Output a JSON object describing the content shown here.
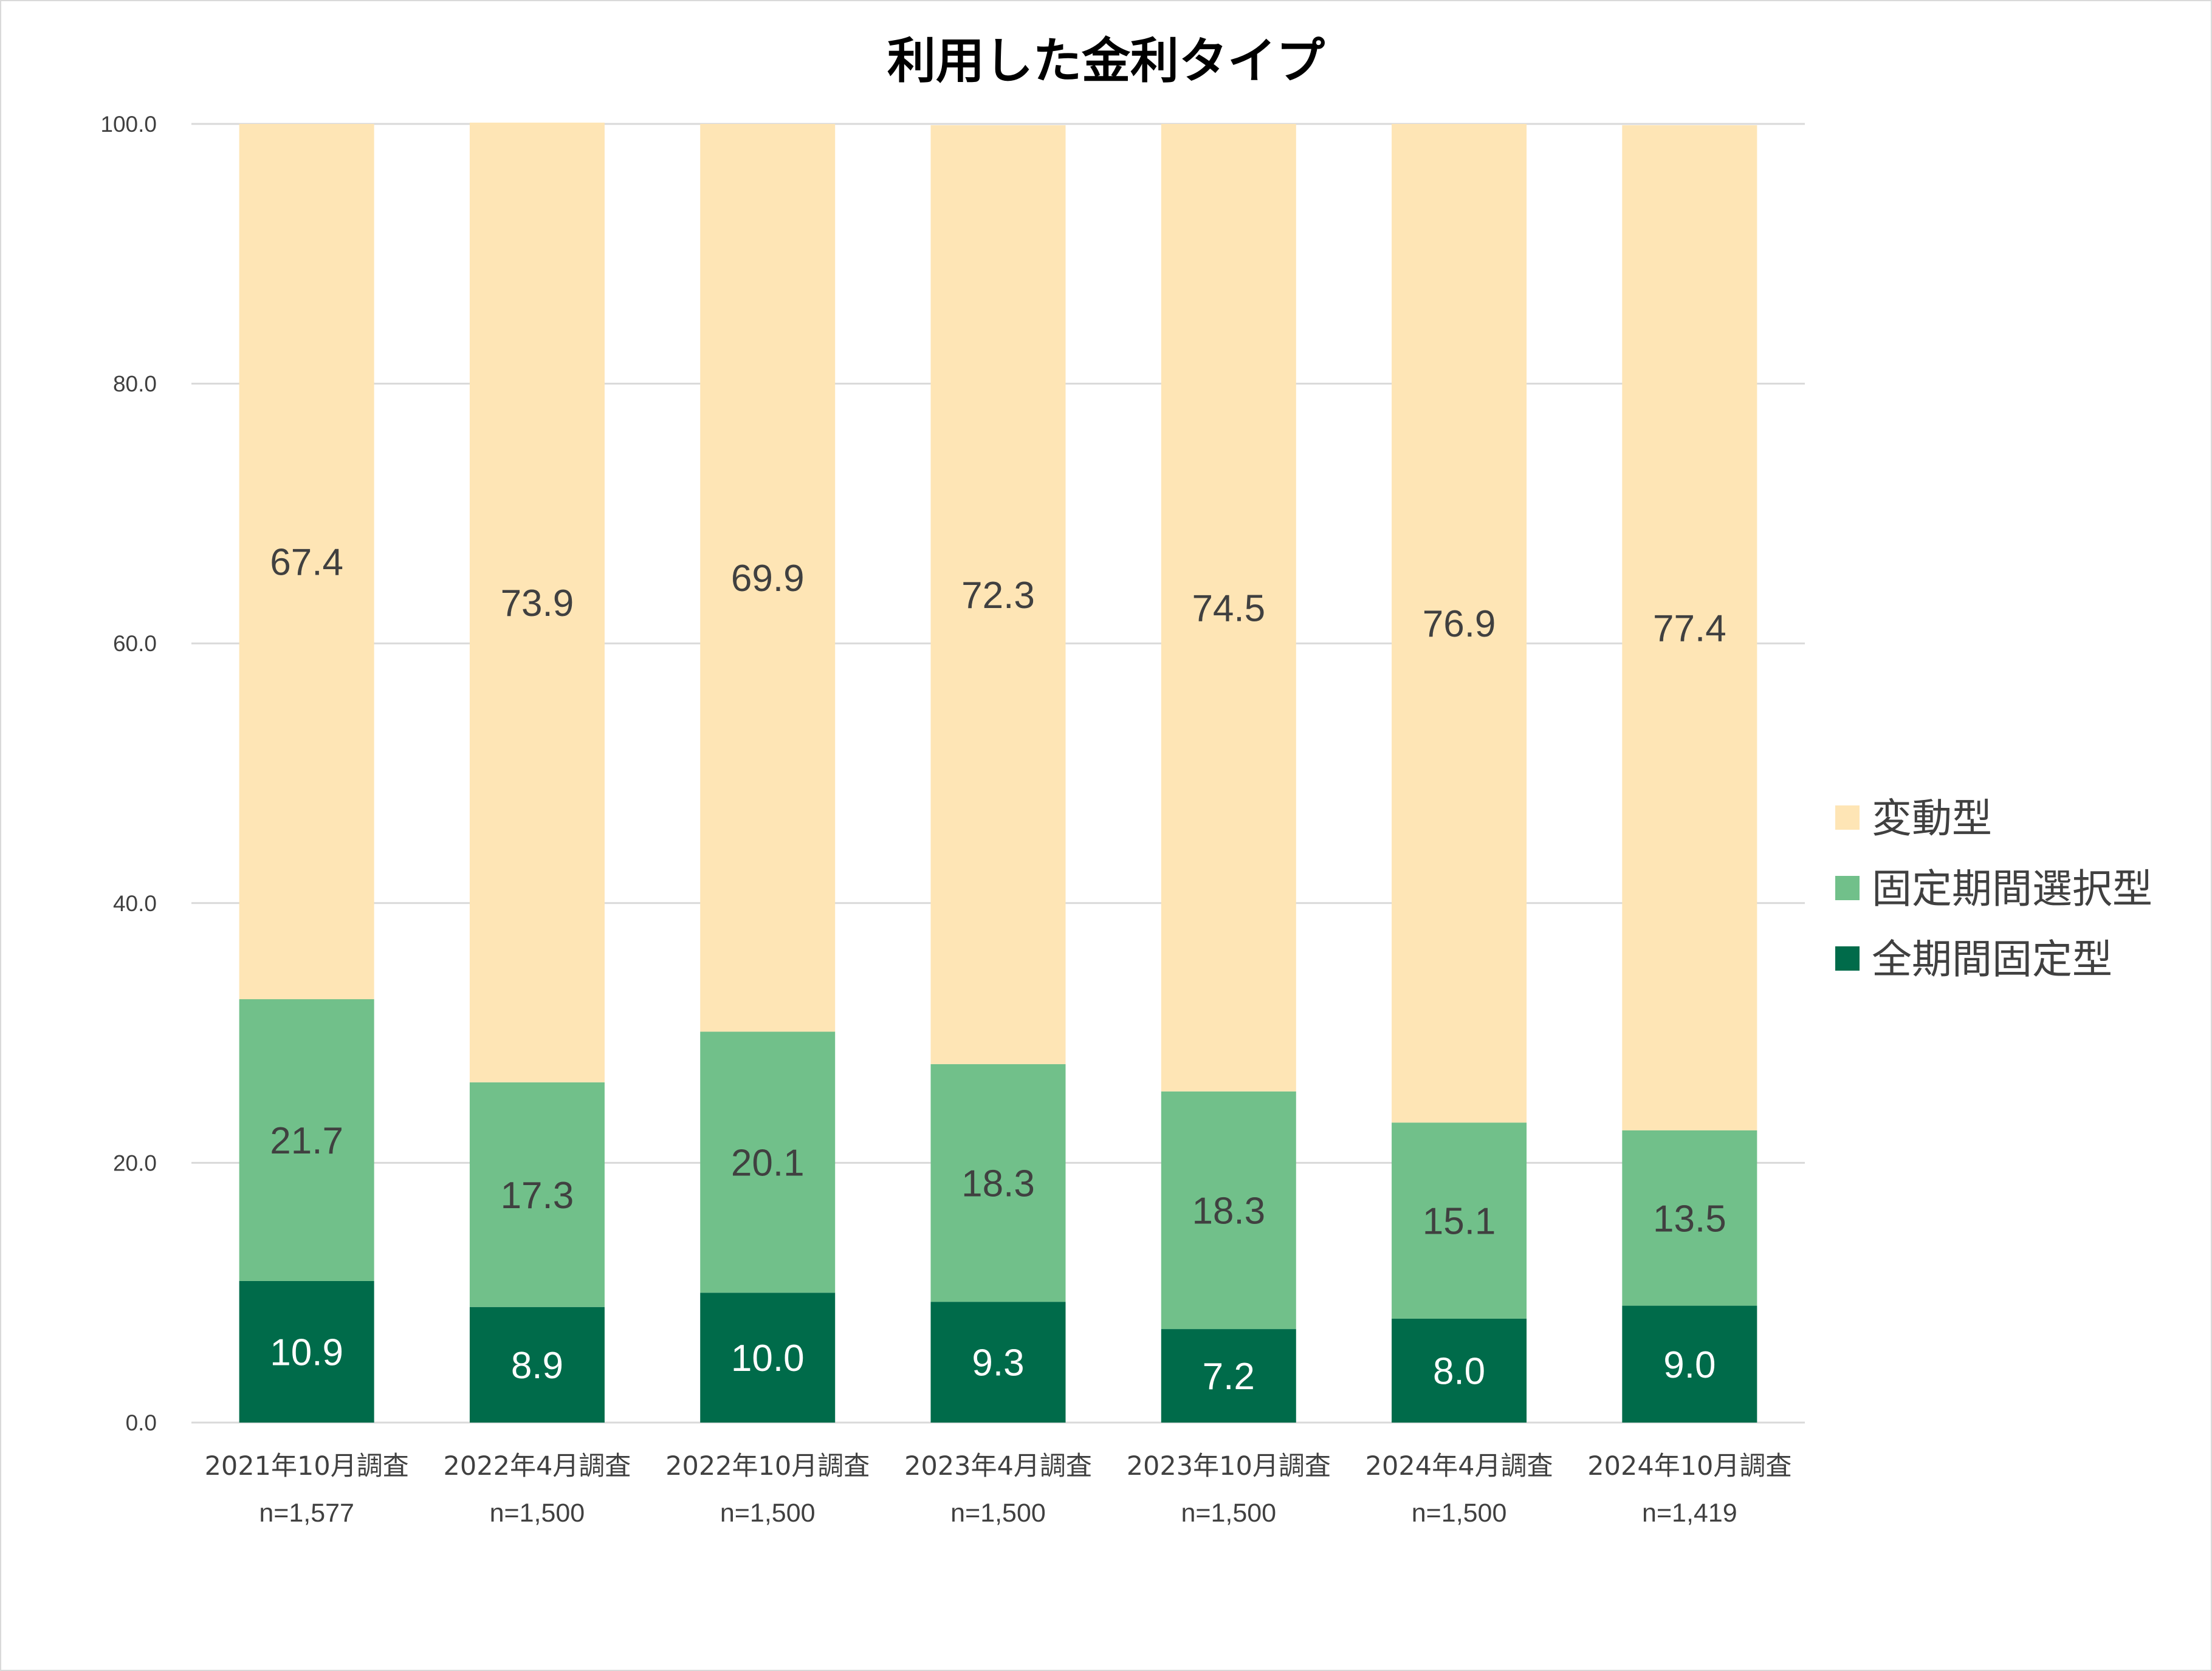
{
  "chart_data": {
    "type": "bar",
    "stacked": true,
    "title": "利用した金利タイプ",
    "categories": [
      "2021年10月調査",
      "2022年4月調査",
      "2022年10月調査",
      "2023年4月調査",
      "2023年10月調査",
      "2024年4月調査",
      "2024年10月調査"
    ],
    "sample_sizes": [
      "n=1,577",
      "n=1,500",
      "n=1,500",
      "n=1,500",
      "n=1,500",
      "n=1,500",
      "n=1,419"
    ],
    "series": [
      {
        "name": "全期間固定型",
        "color": "#006b4a",
        "label_color": "#ffffff",
        "values": [
          10.9,
          8.9,
          10.0,
          9.3,
          7.2,
          8.0,
          9.0
        ]
      },
      {
        "name": "固定期間選択型",
        "color": "#71c08a",
        "label_color": "#404040",
        "values": [
          21.7,
          17.3,
          20.1,
          18.3,
          18.3,
          15.1,
          13.5
        ]
      },
      {
        "name": "変動型",
        "color": "#fee5b5",
        "label_color": "#404040",
        "values": [
          67.4,
          73.9,
          69.9,
          72.3,
          74.5,
          76.9,
          77.4
        ]
      }
    ],
    "legend_order": [
      "変動型",
      "固定期間選択型",
      "全期間固定型"
    ],
    "ylim": [
      0,
      100
    ],
    "yticks": [
      "0.0",
      "20.0",
      "40.0",
      "60.0",
      "80.0",
      "100.0"
    ],
    "grid": true,
    "legend_position": "right"
  }
}
